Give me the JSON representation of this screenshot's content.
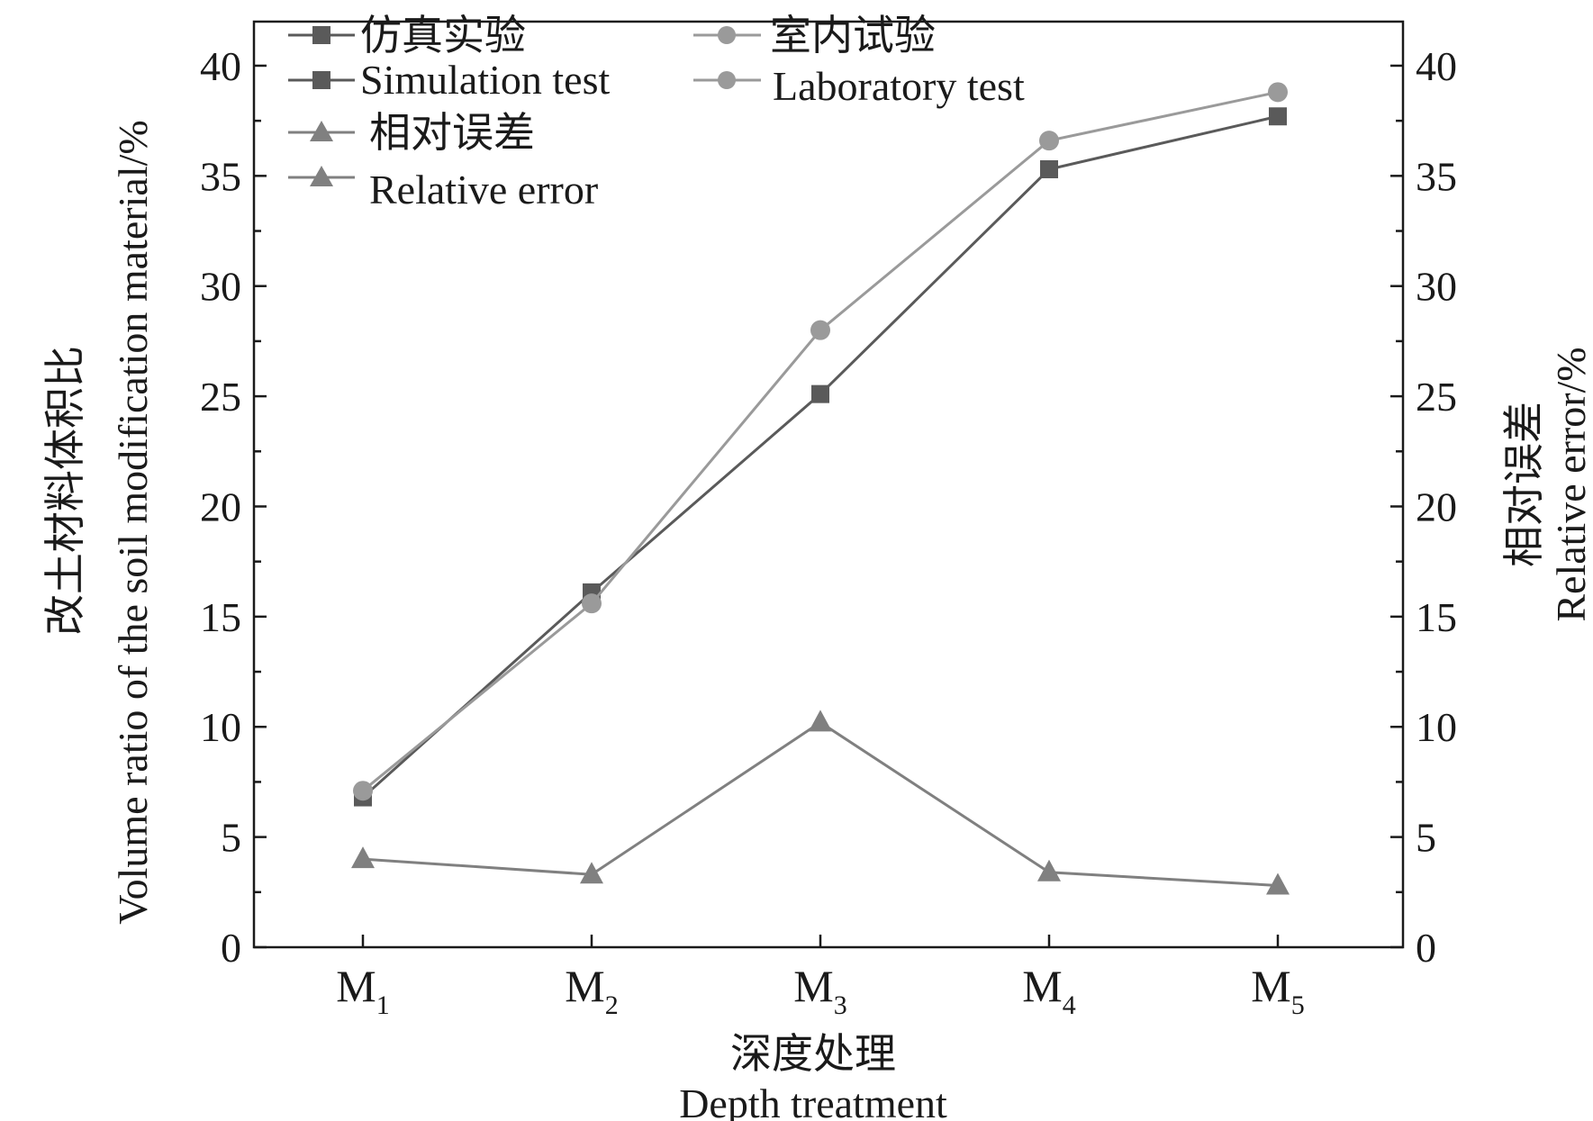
{
  "chart_data": {
    "type": "line",
    "categories": [
      {
        "main": "M",
        "sub": "1"
      },
      {
        "main": "M",
        "sub": "2"
      },
      {
        "main": "M",
        "sub": "3"
      },
      {
        "main": "M",
        "sub": "4"
      },
      {
        "main": "M",
        "sub": "5"
      }
    ],
    "xlabel": {
      "zh": "深度处理",
      "en": "Depth treatment"
    },
    "ylabel_left": {
      "zh": "改土材料体积比",
      "en": "Volume ratio of the soil modification material/%"
    },
    "ylabel_right": {
      "zh": "相对误差",
      "en": "Relative error/%"
    },
    "ylim": [
      0,
      42
    ],
    "yticks": [
      0,
      5,
      10,
      15,
      20,
      25,
      30,
      35,
      40
    ],
    "grid": false,
    "legend_position": "top-left",
    "series": [
      {
        "name_zh": "仿真实验",
        "name_en": "Simulation test",
        "marker": "square",
        "color": "#5a5a5a",
        "axis": "left",
        "values": [
          6.8,
          16.1,
          25.1,
          35.3,
          37.7
        ]
      },
      {
        "name_zh": "室内试验",
        "name_en": "Laboratory test",
        "marker": "circle",
        "color": "#9a9a9a",
        "axis": "left",
        "values": [
          7.1,
          15.6,
          28.0,
          36.6,
          38.8
        ]
      },
      {
        "name_zh": "相对误差",
        "name_en": "Relative error",
        "marker": "triangle",
        "color": "#808080",
        "axis": "right",
        "values": [
          4.0,
          3.3,
          10.2,
          3.4,
          2.8
        ]
      }
    ]
  }
}
